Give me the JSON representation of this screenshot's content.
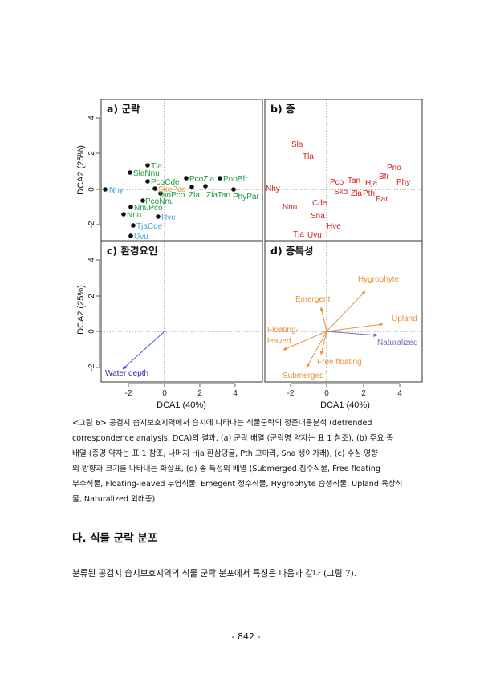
{
  "figure": {
    "panels": {
      "a": {
        "title": "a) 군락"
      },
      "b": {
        "title": "b) 종"
      },
      "c": {
        "title": "c) 환경요인"
      },
      "d": {
        "title": "d) 종특성"
      }
    },
    "axis_labels": {
      "dca1": "DCA1 (40%)",
      "dca2": "DCA2 (25%)"
    },
    "x_ticks": [
      "-2",
      "0",
      "2",
      "4"
    ],
    "y_ticks": [
      "4",
      "2",
      "0",
      "-2"
    ],
    "colors": {
      "green": "#1a9a3c",
      "blue": "#3aa6d8",
      "orange": "#e8933a",
      "red": "#d42020",
      "navy": "#2a2aa8",
      "purple": "#7a6ab8"
    },
    "community_labels": [
      {
        "text": "Tla",
        "color": "green"
      },
      {
        "text": "SlaNnu",
        "color": "green"
      },
      {
        "text": "PcoCde",
        "color": "green"
      },
      {
        "text": "SkoPco",
        "color": "orange"
      },
      {
        "text": "PcoZla",
        "color": "green"
      },
      {
        "text": "PnoBfr",
        "color": "green"
      },
      {
        "text": "Nhy",
        "color": "blue"
      },
      {
        "text": "TanPco",
        "color": "green"
      },
      {
        "text": "Zla",
        "color": "green"
      },
      {
        "text": "ZlaTan",
        "color": "green"
      },
      {
        "text": "PhyPar",
        "color": "green"
      },
      {
        "text": "PcoNnu",
        "color": "green"
      },
      {
        "text": "NnuPco",
        "color": "green"
      },
      {
        "text": "Nnu",
        "color": "green"
      },
      {
        "text": "Hve",
        "color": "blue"
      },
      {
        "text": "TjaCde",
        "color": "blue"
      },
      {
        "text": "Uvu",
        "color": "blue"
      }
    ],
    "species_labels": [
      "Sla",
      "Tla",
      "Pno",
      "Bfr",
      "Phy",
      "Pco",
      "Tan",
      "Hja",
      "Sko",
      "Zla",
      "Pth",
      "Par",
      "Nhy",
      "Cde",
      "Nnu",
      "Sna",
      "Hve",
      "Tja",
      "Uvu"
    ],
    "environment_labels": [
      "Water depth"
    ],
    "trait_labels": [
      "Hygrophyte",
      "Emergent",
      "Upland",
      "Floating-",
      "leaved",
      "Naturalized",
      "Free floating",
      "Submerged"
    ]
  },
  "caption": {
    "line1": "<그림 6> 공검지 습지보호지역에서 습지에 나타나는 식물군락의 정준대응분석 (detrended",
    "line2": "correspondence analysis, DCA)의 결과. (a) 군락 배열 (군락명 약자는 표 1 참조), (b) 주요 종",
    "line3": "배열 (종명 약자는 표 1 참조, 나머지 Hja 환삼덩굴, Pth 고마리, Sna 생이가래), (c) 수심 영향",
    "line4": "의 방향과 크기를 나타내는 화살표, (d) 종 특성의 배열 (Submerged 침수식물, Free floating",
    "line5": "부수식물, Floating-leaved 부엽식물, Emegent 정수식물, Hygrophyte 습생식물, Upland 육상식",
    "line6": "물, Naturalized 외래종)"
  },
  "section_heading": "다. 식물 군락 분포",
  "body_text": "분류된 공검지 습지보호지역의 식물 군락 분포에서 특징은 다음과 같다 (그림 7).",
  "page_number": "- 842 -"
}
